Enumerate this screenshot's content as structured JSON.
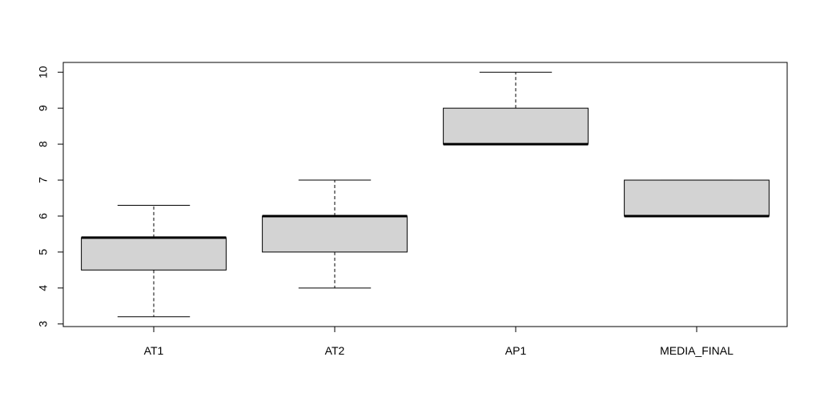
{
  "chart_data": {
    "type": "box",
    "categories": [
      "AT1",
      "AT2",
      "AP1",
      "MEDIA_FINAL"
    ],
    "boxes": [
      {
        "min": 3.2,
        "q1": 4.5,
        "median": 5.4,
        "q3": 5.4,
        "max": 6.3
      },
      {
        "min": 4,
        "q1": 5,
        "median": 6,
        "q3": 6,
        "max": 7
      },
      {
        "min": 8,
        "q1": 8,
        "median": 8,
        "q3": 9,
        "max": 10
      },
      {
        "min": 6,
        "q1": 6,
        "median": 6,
        "q3": 7,
        "max": 7
      }
    ],
    "color": "#d3d3d3",
    "ylim": [
      2.928,
      10.272
    ],
    "yticks": [
      3,
      4,
      5,
      6,
      7,
      8,
      9,
      10
    ]
  }
}
